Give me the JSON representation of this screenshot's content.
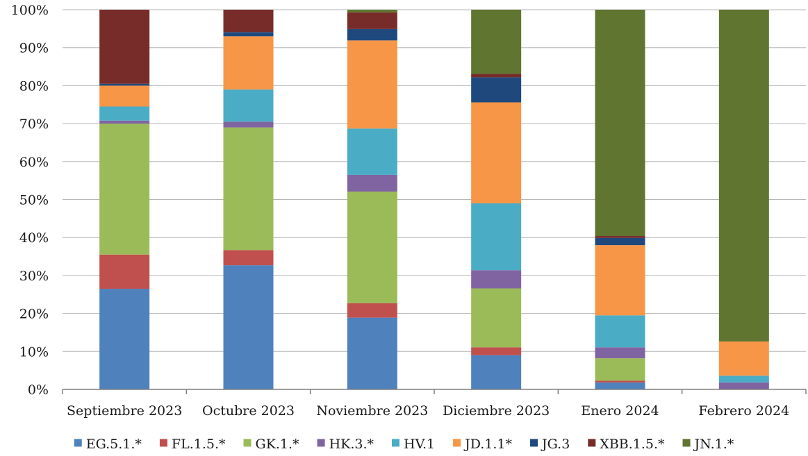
{
  "chart_data": {
    "type": "bar",
    "stacked": true,
    "normalized": true,
    "categories": [
      "Septiembre 2023",
      "Octubre 2023",
      "Noviembre 2023",
      "Diciembre 2023",
      "Enero 2024",
      "Febrero 2024"
    ],
    "ylim": [
      0,
      100
    ],
    "yticks": [
      "0%",
      "10%",
      "20%",
      "30%",
      "40%",
      "50%",
      "60%",
      "70%",
      "80%",
      "90%",
      "100%"
    ],
    "grid": true,
    "legend_position": "bottom",
    "series": [
      {
        "name": "EG.5.1.*",
        "color": "#4F81BD",
        "values": [
          26.5,
          32.7,
          18.9,
          9.0,
          1.8,
          0.0
        ]
      },
      {
        "name": "FL.1.5.*",
        "color": "#C0504D",
        "values": [
          9.0,
          4.0,
          3.8,
          2.1,
          0.5,
          0.0
        ]
      },
      {
        "name": "GK.1.*",
        "color": "#9BBB59",
        "values": [
          34.5,
          32.3,
          29.4,
          15.5,
          5.9,
          0.0
        ]
      },
      {
        "name": "HK.3.*",
        "color": "#8064A2",
        "values": [
          0.8,
          1.5,
          4.4,
          4.8,
          2.9,
          1.8
        ]
      },
      {
        "name": "HV.1",
        "color": "#4BACC6",
        "values": [
          3.7,
          8.5,
          12.2,
          17.6,
          8.4,
          1.8
        ]
      },
      {
        "name": "JD.1.1*",
        "color": "#F79646",
        "values": [
          5.5,
          14.0,
          23.2,
          26.6,
          18.5,
          9.0
        ]
      },
      {
        "name": "JG.3",
        "color": "#1F497D",
        "values": [
          0.5,
          1.1,
          3.0,
          6.6,
          1.9,
          0.0
        ]
      },
      {
        "name": "XBB.1.5.*",
        "color": "#772C2A",
        "values": [
          19.5,
          5.9,
          4.4,
          0.9,
          0.5,
          0.0
        ]
      },
      {
        "name": "JN.1.*",
        "color": "#5F7530",
        "values": [
          0.0,
          0.0,
          0.7,
          16.9,
          59.6,
          87.4
        ]
      }
    ]
  }
}
